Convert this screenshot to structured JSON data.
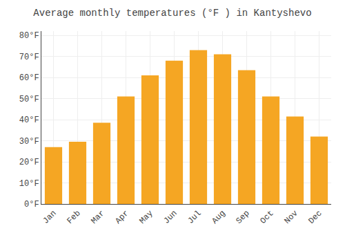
{
  "chart_data": {
    "type": "bar",
    "title": "Average monthly temperatures (°F ) in Kantyshevo",
    "categories": [
      "Jan",
      "Feb",
      "Mar",
      "Apr",
      "May",
      "Jun",
      "Jul",
      "Aug",
      "Sep",
      "Oct",
      "Nov",
      "Dec"
    ],
    "values": [
      27,
      29.5,
      38.5,
      51,
      61,
      68,
      73,
      71,
      63.5,
      51,
      41.5,
      32
    ],
    "color": "#F5A623",
    "ylim": [
      0,
      82
    ],
    "yticks": [
      {
        "value": 0,
        "label": "0°F"
      },
      {
        "value": 10,
        "label": "10°F"
      },
      {
        "value": 20,
        "label": "20°F"
      },
      {
        "value": 30,
        "label": "30°F"
      },
      {
        "value": 40,
        "label": "40°F"
      },
      {
        "value": 50,
        "label": "50°F"
      },
      {
        "value": 60,
        "label": "60°F"
      },
      {
        "value": 70,
        "label": "70°F"
      },
      {
        "value": 80,
        "label": "80°F"
      }
    ],
    "grid": true
  }
}
